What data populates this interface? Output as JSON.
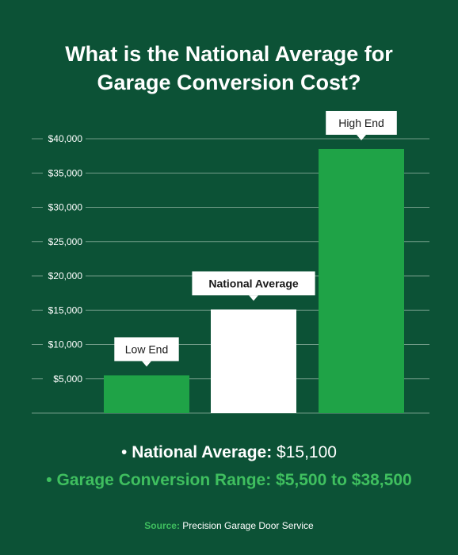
{
  "title_line1": "What is the National Average for",
  "title_line2": "Garage Conversion Cost?",
  "colors": {
    "background": "#0c5236",
    "accent_green": "#1fa347",
    "highlight_white": "#ffffff",
    "label_green": "#3fbf5f",
    "grid": "#6f9a86"
  },
  "chart_data": {
    "type": "bar",
    "categories": [
      "Low End",
      "National Average",
      "High End"
    ],
    "values": [
      5500,
      15100,
      38500
    ],
    "bar_colors": [
      "#1fa347",
      "#ffffff",
      "#1fa347"
    ],
    "ylim": [
      0,
      40000
    ],
    "yticks": [
      5000,
      10000,
      15000,
      20000,
      25000,
      30000,
      35000,
      40000
    ],
    "ytick_labels": [
      "$5,000",
      "$10,000",
      "$15,000",
      "$20,000",
      "$25,000",
      "$30,000",
      "$35,000",
      "$40,000"
    ],
    "grid": true,
    "title": "What is the National Average for Garage Conversion Cost?"
  },
  "summary": {
    "national_label": "National Average:",
    "national_value": " $15,100",
    "range_text": "Garage Conversion Range: $5,500 to $38,500"
  },
  "source": {
    "label": "Source:",
    "text": " Precision Garage Door Service"
  }
}
